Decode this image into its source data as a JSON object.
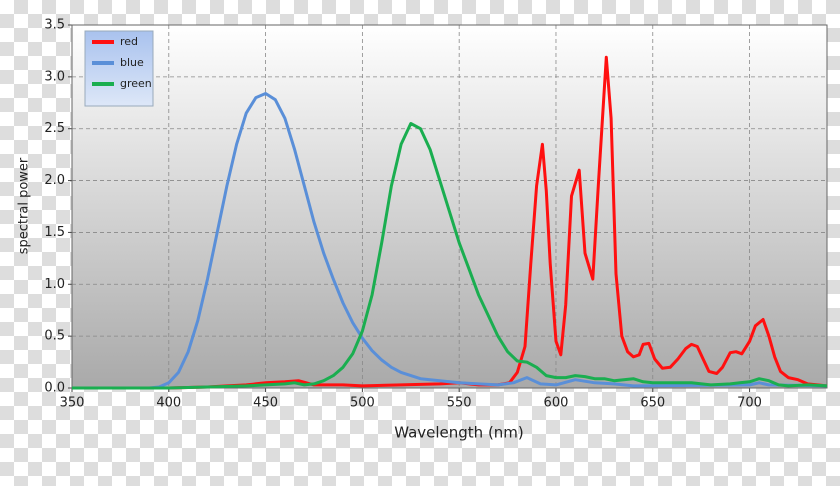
{
  "chart_data": {
    "type": "line",
    "x_label": "Wavelength (nm)",
    "y_label": "spectral power",
    "xlim": [
      350,
      740
    ],
    "ylim": [
      0,
      3.5
    ],
    "xticks": [
      350,
      400,
      450,
      500,
      550,
      600,
      650,
      700
    ],
    "yticks": [
      {
        "value": 0,
        "label": "0.0"
      },
      {
        "value": 0.5,
        "label": "0.5"
      },
      {
        "value": 1,
        "label": "1.0"
      },
      {
        "value": 1.5,
        "label": "1.5"
      },
      {
        "value": 2,
        "label": "2.0"
      },
      {
        "value": 2.5,
        "label": "2.5"
      },
      {
        "value": 3,
        "label": "3.0"
      },
      {
        "value": 3.5,
        "label": "3.5"
      }
    ],
    "grid": true,
    "legend": "upper left",
    "series": [
      {
        "name": "red",
        "color": "#ff1010",
        "x": [
          350,
          400,
          420,
          430,
          440,
          450,
          460,
          467,
          475,
          490,
          500,
          520,
          540,
          550,
          560,
          570,
          576,
          580,
          584,
          587,
          590,
          593,
          595,
          597,
          600,
          602.5,
          605,
          608,
          612,
          615,
          619,
          622,
          626,
          628.5,
          631,
          634,
          637,
          640,
          643,
          645,
          648,
          651,
          655,
          659,
          663,
          667,
          670,
          673,
          676,
          679,
          683,
          686,
          690,
          693,
          696,
          700,
          703,
          707,
          710,
          713,
          716,
          720,
          725,
          730,
          735,
          740
        ],
        "values": [
          0,
          0,
          0.01,
          0.02,
          0.03,
          0.05,
          0.06,
          0.07,
          0.03,
          0.03,
          0.02,
          0.03,
          0.04,
          0.05,
          0.03,
          0.03,
          0.05,
          0.15,
          0.4,
          1.2,
          1.95,
          2.35,
          1.9,
          1.2,
          0.45,
          0.32,
          0.8,
          1.85,
          2.1,
          1.3,
          1.05,
          2.0,
          3.19,
          2.6,
          1.1,
          0.5,
          0.35,
          0.3,
          0.32,
          0.42,
          0.43,
          0.28,
          0.19,
          0.2,
          0.28,
          0.38,
          0.42,
          0.4,
          0.28,
          0.16,
          0.14,
          0.2,
          0.34,
          0.35,
          0.33,
          0.45,
          0.6,
          0.66,
          0.5,
          0.3,
          0.16,
          0.1,
          0.08,
          0.04,
          0.03,
          0.02
        ]
      },
      {
        "name": "blue",
        "color": "#5a8fd8",
        "x": [
          350,
          390,
          395,
          400,
          405,
          410,
          415,
          420,
          425,
          430,
          435,
          440,
          445,
          450,
          455,
          460,
          465,
          470,
          475,
          480,
          485,
          490,
          495,
          500,
          505,
          510,
          515,
          520,
          525,
          530,
          535,
          540,
          545,
          550,
          560,
          570,
          578,
          585,
          592,
          600,
          610,
          620,
          630,
          640,
          700,
          705,
          710,
          740
        ],
        "values": [
          0,
          0,
          0.01,
          0.05,
          0.15,
          0.35,
          0.65,
          1.05,
          1.5,
          1.95,
          2.35,
          2.65,
          2.8,
          2.84,
          2.78,
          2.6,
          2.3,
          1.95,
          1.6,
          1.3,
          1.05,
          0.82,
          0.63,
          0.48,
          0.36,
          0.27,
          0.2,
          0.15,
          0.12,
          0.09,
          0.08,
          0.07,
          0.06,
          0.05,
          0.04,
          0.03,
          0.05,
          0.1,
          0.04,
          0.03,
          0.08,
          0.05,
          0.04,
          0.02,
          0.03,
          0.05,
          0.03,
          0.02
        ]
      },
      {
        "name": "green",
        "color": "#1aae50",
        "x": [
          350,
          400,
          420,
          440,
          450,
          460,
          465,
          470,
          475,
          480,
          485,
          490,
          495,
          500,
          505,
          510,
          515,
          520,
          525,
          530,
          535,
          540,
          545,
          550,
          555,
          560,
          565,
          570,
          575,
          580,
          585,
          590,
          595,
          600,
          605,
          610,
          615,
          620,
          625,
          630,
          635,
          640,
          645,
          650,
          670,
          680,
          690,
          695,
          700,
          705,
          710,
          715,
          720,
          730,
          740
        ],
        "values": [
          0,
          0,
          0.01,
          0.02,
          0.03,
          0.04,
          0.05,
          0.03,
          0.04,
          0.07,
          0.12,
          0.2,
          0.33,
          0.55,
          0.9,
          1.4,
          1.95,
          2.35,
          2.55,
          2.5,
          2.3,
          2.0,
          1.7,
          1.4,
          1.15,
          0.9,
          0.7,
          0.5,
          0.35,
          0.26,
          0.25,
          0.2,
          0.12,
          0.1,
          0.1,
          0.12,
          0.11,
          0.09,
          0.09,
          0.07,
          0.08,
          0.09,
          0.06,
          0.05,
          0.05,
          0.03,
          0.04,
          0.05,
          0.06,
          0.09,
          0.07,
          0.03,
          0.02,
          0.03,
          0.02
        ]
      }
    ]
  }
}
